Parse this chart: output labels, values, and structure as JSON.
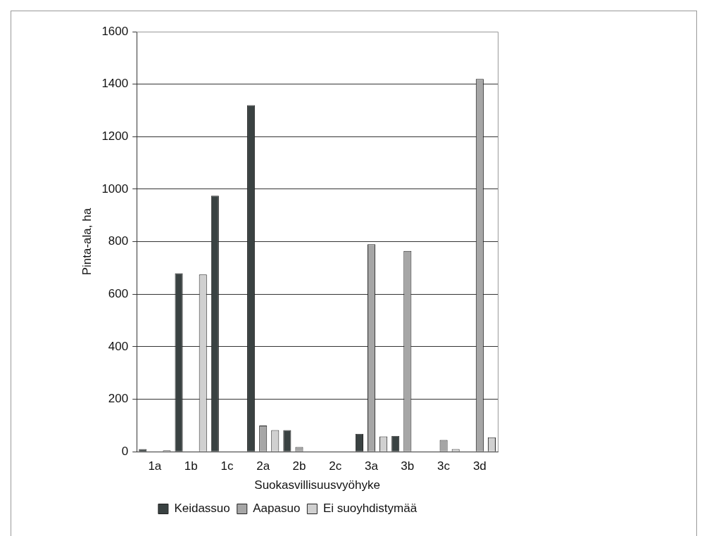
{
  "chart_data": {
    "type": "bar",
    "xlabel": "Suokasvillisuusvyöhyke",
    "ylabel": "Pinta-ala, ha",
    "categories": [
      "1a",
      "1b",
      "1c",
      "2a",
      "2b",
      "2c",
      "3a",
      "3b",
      "3c",
      "3d"
    ],
    "series": [
      {
        "name": "Keidassuo",
        "color": "#3a4242",
        "values": [
          10,
          680,
          975,
          1320,
          82,
          null,
          68,
          60,
          null,
          null
        ]
      },
      {
        "name": "Aapasuo",
        "color": "#a6a6a6",
        "values": [
          null,
          null,
          null,
          100,
          18,
          null,
          790,
          765,
          45,
          1420
        ]
      },
      {
        "name": "Ei suoyhdistymää",
        "color": "#d0d0d0",
        "values": [
          5,
          675,
          null,
          82,
          null,
          null,
          58,
          null,
          10,
          55
        ]
      }
    ],
    "ylim": [
      0,
      1600
    ],
    "yticks": [
      0,
      200,
      400,
      600,
      800,
      1000,
      1200,
      1400,
      1600
    ],
    "grid": "y",
    "legend": "bottom"
  }
}
